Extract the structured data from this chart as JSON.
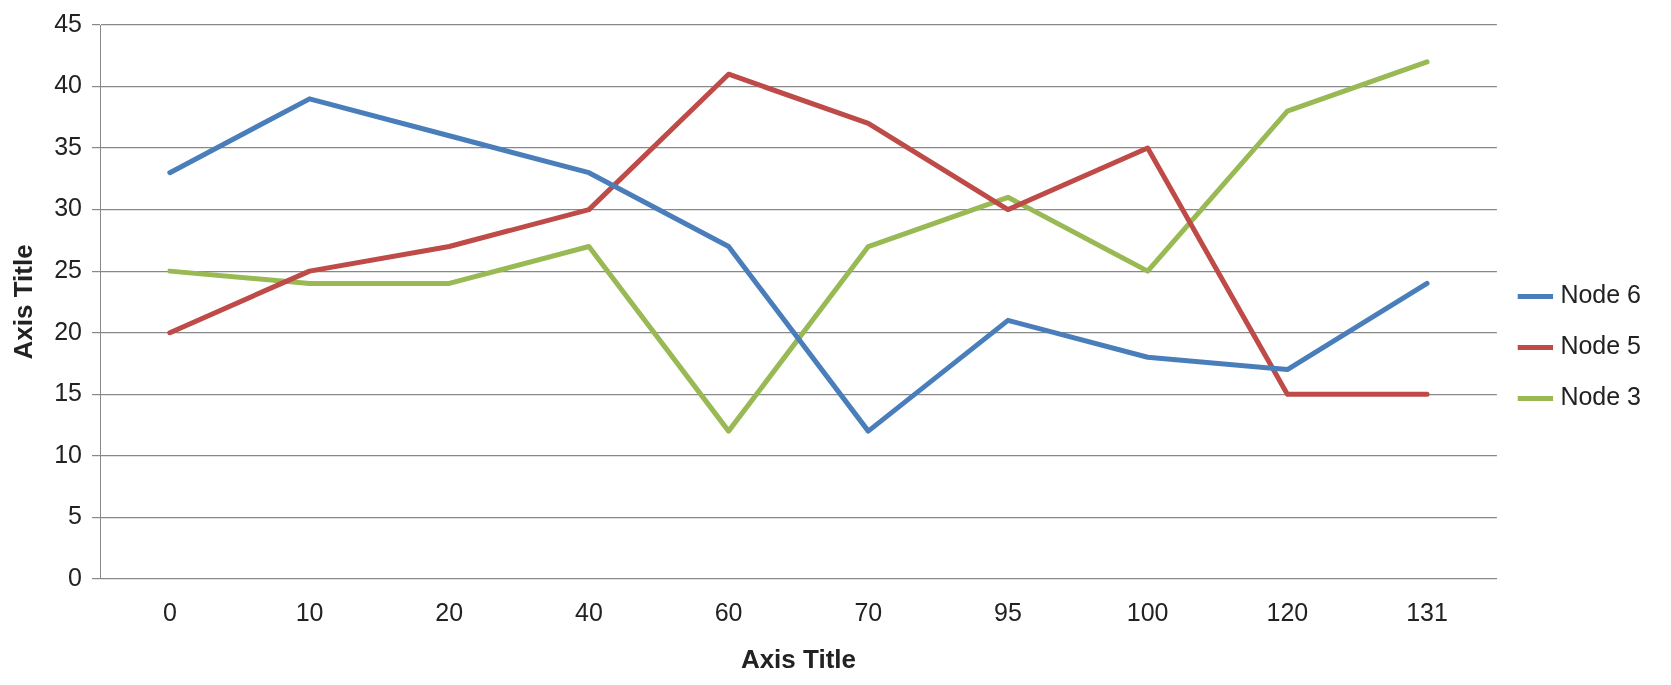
{
  "chart_data": {
    "type": "line",
    "xlabel": "Axis Title",
    "ylabel": "Axis Title",
    "categories": [
      "0",
      "10",
      "20",
      "40",
      "60",
      "70",
      "95",
      "100",
      "120",
      "131"
    ],
    "series": [
      {
        "name": "Node 6",
        "color": "#4a7ebb",
        "values": [
          33,
          39,
          36,
          33,
          27,
          12,
          21,
          18,
          17,
          24
        ]
      },
      {
        "name": "Node 5",
        "color": "#be4b48",
        "values": [
          20,
          25,
          27,
          30,
          41,
          37,
          30,
          35,
          15,
          15
        ]
      },
      {
        "name": "Node 3",
        "color": "#98b954",
        "values": [
          25,
          24,
          24,
          27,
          12,
          27,
          31,
          25,
          38,
          42
        ]
      }
    ],
    "ylim": [
      0,
      45
    ],
    "yticks": [
      0,
      5,
      10,
      15,
      20,
      25,
      30,
      35,
      40,
      45
    ],
    "grid": "y",
    "legend": "right",
    "marker": "none",
    "line_style": "solid"
  }
}
